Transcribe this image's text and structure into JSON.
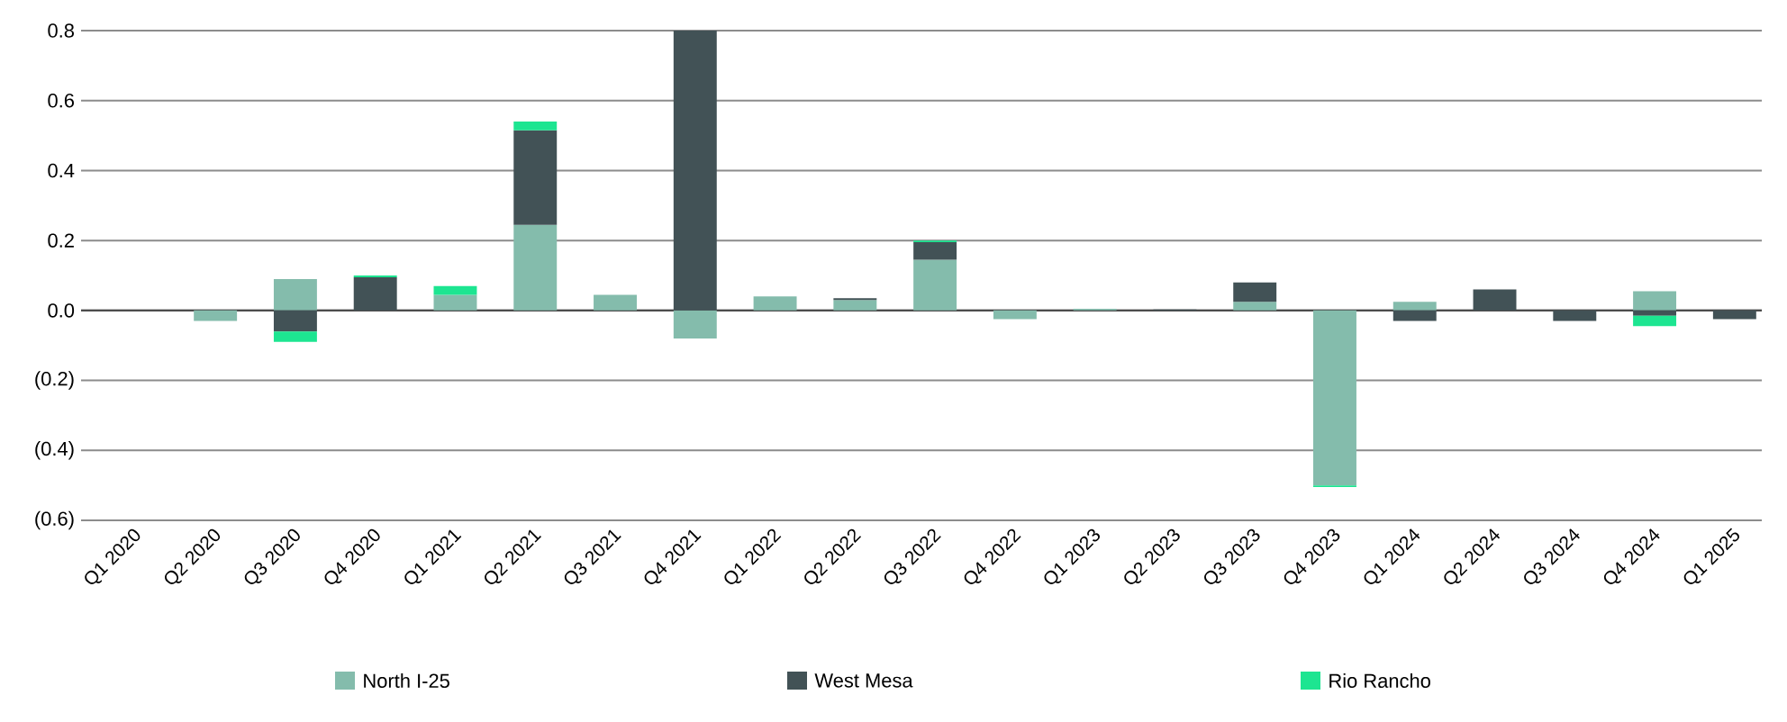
{
  "chart_data": {
    "type": "bar",
    "stacked": true,
    "categories": [
      "Q1 2020",
      "Q2 2020",
      "Q3 2020",
      "Q4 2020",
      "Q1 2021",
      "Q2 2021",
      "Q3 2021",
      "Q4 2021",
      "Q1 2022",
      "Q2 2022",
      "Q3 2022",
      "Q4 2022",
      "Q1 2023",
      "Q2 2023",
      "Q3 2023",
      "Q4 2023",
      "Q1 2024",
      "Q2 2024",
      "Q3 2024",
      "Q4 2024",
      "Q1 2025"
    ],
    "series": [
      {
        "name": "North I-25",
        "color": "#84bcac",
        "values": [
          0,
          -0.03,
          0.09,
          0,
          0.045,
          0.245,
          0.045,
          -0.08,
          0.04,
          0.03,
          0.145,
          -0.025,
          0.005,
          0,
          0.025,
          -0.5,
          0.025,
          0,
          0,
          0.055,
          0
        ]
      },
      {
        "name": "West Mesa",
        "color": "#425256",
        "values": [
          0,
          0,
          -0.06,
          0.095,
          0,
          0.27,
          0,
          0.8,
          0,
          0.005,
          0.05,
          0,
          0,
          0.003,
          0.055,
          0,
          -0.03,
          0.06,
          -0.03,
          -0.015,
          -0.025
        ]
      },
      {
        "name": "Rio Rancho",
        "color": "#1de591",
        "values": [
          0,
          0,
          -0.03,
          0.005,
          0.025,
          0.025,
          0,
          0,
          0,
          0,
          0.005,
          0,
          0,
          0,
          0,
          -0.005,
          0,
          0,
          0,
          -0.03,
          0
        ]
      }
    ],
    "ylim": [
      -0.6,
      0.8
    ],
    "yticks": [
      {
        "value": -0.6,
        "label": "(0.6)"
      },
      {
        "value": -0.4,
        "label": "(0.4)"
      },
      {
        "value": -0.2,
        "label": "(0.2)"
      },
      {
        "value": 0,
        "label": "0.0"
      },
      {
        "value": 0.2,
        "label": "0.2"
      },
      {
        "value": 0.4,
        "label": "0.4"
      },
      {
        "value": 0.6,
        "label": "0.6"
      },
      {
        "value": 0.8,
        "label": "0.8"
      }
    ],
    "grid": "y",
    "legend": "bottom"
  }
}
